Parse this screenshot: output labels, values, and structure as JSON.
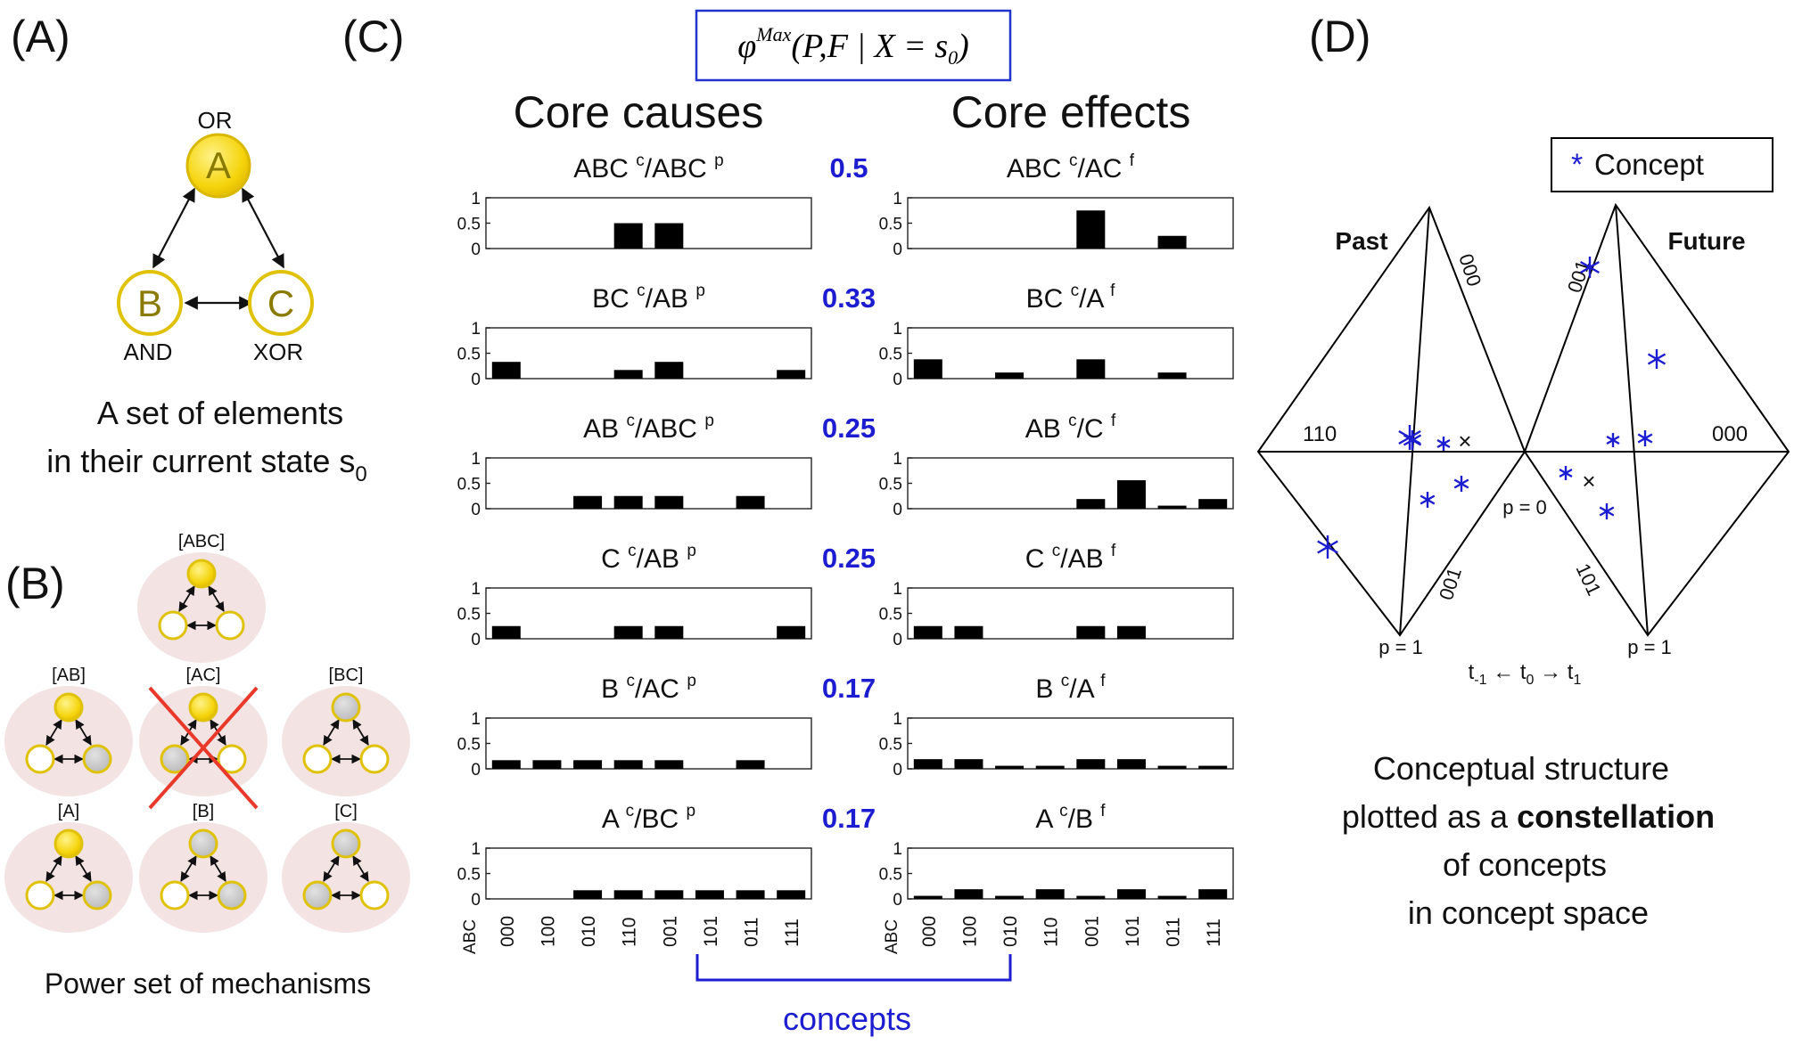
{
  "panel_labels": {
    "A": "(A)",
    "B": "(B)",
    "C": "(C)",
    "D": "(D)"
  },
  "panelA": {
    "nodes": [
      {
        "name": "A",
        "gate": "OR"
      },
      {
        "name": "B",
        "gate": "AND"
      },
      {
        "name": "C",
        "gate": "XOR"
      }
    ],
    "caption_line1": "A set of elements",
    "caption_line2": "in their current state s",
    "caption_sub": "0",
    "colors": {
      "active": "#f5d40c",
      "inactive": "#ffffff",
      "off": "#c8c8c8",
      "ring": "#c9a800",
      "text": "#8a7a00",
      "halo": "#f2dfe0"
    }
  },
  "panelB": {
    "caption": "Power set of mechanisms",
    "mechanisms": [
      {
        "label": "[ABC]",
        "states": [
          "on",
          "on",
          "on"
        ],
        "halo": true,
        "crossed": false
      },
      {
        "label": "[AB]",
        "states": [
          "on",
          "on",
          "off"
        ],
        "halo": true,
        "crossed": false
      },
      {
        "label": "[AC]",
        "states": [
          "on",
          "off",
          "on"
        ],
        "halo": true,
        "crossed": true
      },
      {
        "label": "[BC]",
        "states": [
          "off",
          "on",
          "on"
        ],
        "halo": true,
        "crossed": false
      },
      {
        "label": "[A]",
        "states": [
          "on",
          "on",
          "off"
        ],
        "halo": true,
        "crossed": false
      },
      {
        "label": "[B]",
        "states": [
          "off",
          "on",
          "off"
        ],
        "halo": true,
        "crossed": false
      },
      {
        "label": "[C]",
        "states": [
          "off",
          "off",
          "on"
        ],
        "halo": true,
        "crossed": false
      }
    ]
  },
  "panelC": {
    "formula": "φ^Max (P,F | X = s0)",
    "causes_header": "Core causes",
    "effects_header": "Core effects",
    "footer_label": "concepts",
    "axis_ticks": [
      "1",
      "0.5",
      "0"
    ],
    "x_label_corner": "ABC",
    "states": [
      "000",
      "100",
      "010",
      "110",
      "001",
      "101",
      "011",
      "111"
    ]
  },
  "chart_data": {
    "type": "bar",
    "categories": [
      "000",
      "100",
      "010",
      "110",
      "001",
      "101",
      "011",
      "111"
    ],
    "ylim": [
      0,
      1
    ],
    "rows": [
      {
        "phi": "0.5",
        "cause_title": {
          "mech": "ABC",
          "purview": "ABC",
          "sup": "p"
        },
        "effect_title": {
          "mech": "ABC",
          "purview": "AC",
          "sup": "f"
        },
        "cause_values": [
          0,
          0,
          0,
          0.5,
          0.5,
          0,
          0,
          0
        ],
        "effect_values": [
          0,
          0,
          0,
          0,
          0.75,
          0,
          0.25,
          0
        ]
      },
      {
        "phi": "0.33",
        "cause_title": {
          "mech": "BC",
          "purview": "AB",
          "sup": "p"
        },
        "effect_title": {
          "mech": "BC",
          "purview": "A",
          "sup": "f"
        },
        "cause_values": [
          0.33,
          0,
          0,
          0.17,
          0.33,
          0,
          0,
          0.17
        ],
        "effect_values": [
          0.38,
          0,
          0.12,
          0,
          0.38,
          0,
          0.12,
          0
        ]
      },
      {
        "phi": "0.25",
        "cause_title": {
          "mech": "AB",
          "purview": "ABC",
          "sup": "p"
        },
        "effect_title": {
          "mech": "AB",
          "purview": "C",
          "sup": "f"
        },
        "cause_values": [
          0,
          0,
          0.25,
          0.25,
          0.25,
          0,
          0.25,
          0
        ],
        "effect_values": [
          0,
          0,
          0,
          0,
          0.19,
          0.56,
          0.06,
          0.19
        ]
      },
      {
        "phi": "0.25",
        "cause_title": {
          "mech": "C",
          "purview": "AB",
          "sup": "p"
        },
        "effect_title": {
          "mech": "C",
          "purview": "AB",
          "sup": "f"
        },
        "cause_values": [
          0.25,
          0,
          0,
          0.25,
          0.25,
          0,
          0,
          0.25
        ],
        "effect_values": [
          0.25,
          0.25,
          0,
          0,
          0.25,
          0.25,
          0,
          0
        ]
      },
      {
        "phi": "0.17",
        "cause_title": {
          "mech": "B",
          "purview": "AC",
          "sup": "p"
        },
        "effect_title": {
          "mech": "B",
          "purview": "A",
          "sup": "f"
        },
        "cause_values": [
          0.17,
          0.17,
          0.17,
          0.17,
          0.17,
          0,
          0.17,
          0
        ],
        "effect_values": [
          0.19,
          0.19,
          0.06,
          0.06,
          0.19,
          0.19,
          0.06,
          0.06
        ]
      },
      {
        "phi": "0.17",
        "cause_title": {
          "mech": "A",
          "purview": "BC",
          "sup": "p"
        },
        "effect_title": {
          "mech": "A",
          "purview": "B",
          "sup": "f"
        },
        "cause_values": [
          0,
          0,
          0.17,
          0.17,
          0.17,
          0.17,
          0.17,
          0.17
        ],
        "effect_values": [
          0.06,
          0.19,
          0.06,
          0.19,
          0.06,
          0.19,
          0.06,
          0.19
        ]
      }
    ]
  },
  "panelD": {
    "legend": "Concept",
    "past": "Past",
    "future": "Future",
    "vertex_labels": {
      "past_top": "000",
      "past_left": "110",
      "past_bottom_edge": "001",
      "future_top": "001",
      "future_right": "000",
      "future_bottom_edge": "101",
      "center": "p = 0",
      "past_bottom": "p = 1",
      "future_bottom": "p = 1"
    },
    "time_axis": {
      "left": "t",
      "left_sub": "-1",
      "center": "t",
      "center_sub": "0",
      "right": "t",
      "right_sub": "1"
    },
    "caption": [
      "Conceptual structure",
      "plotted as a",
      "constellation",
      "of concepts",
      "in concept space"
    ],
    "concept_color": "#1c1cd0"
  }
}
